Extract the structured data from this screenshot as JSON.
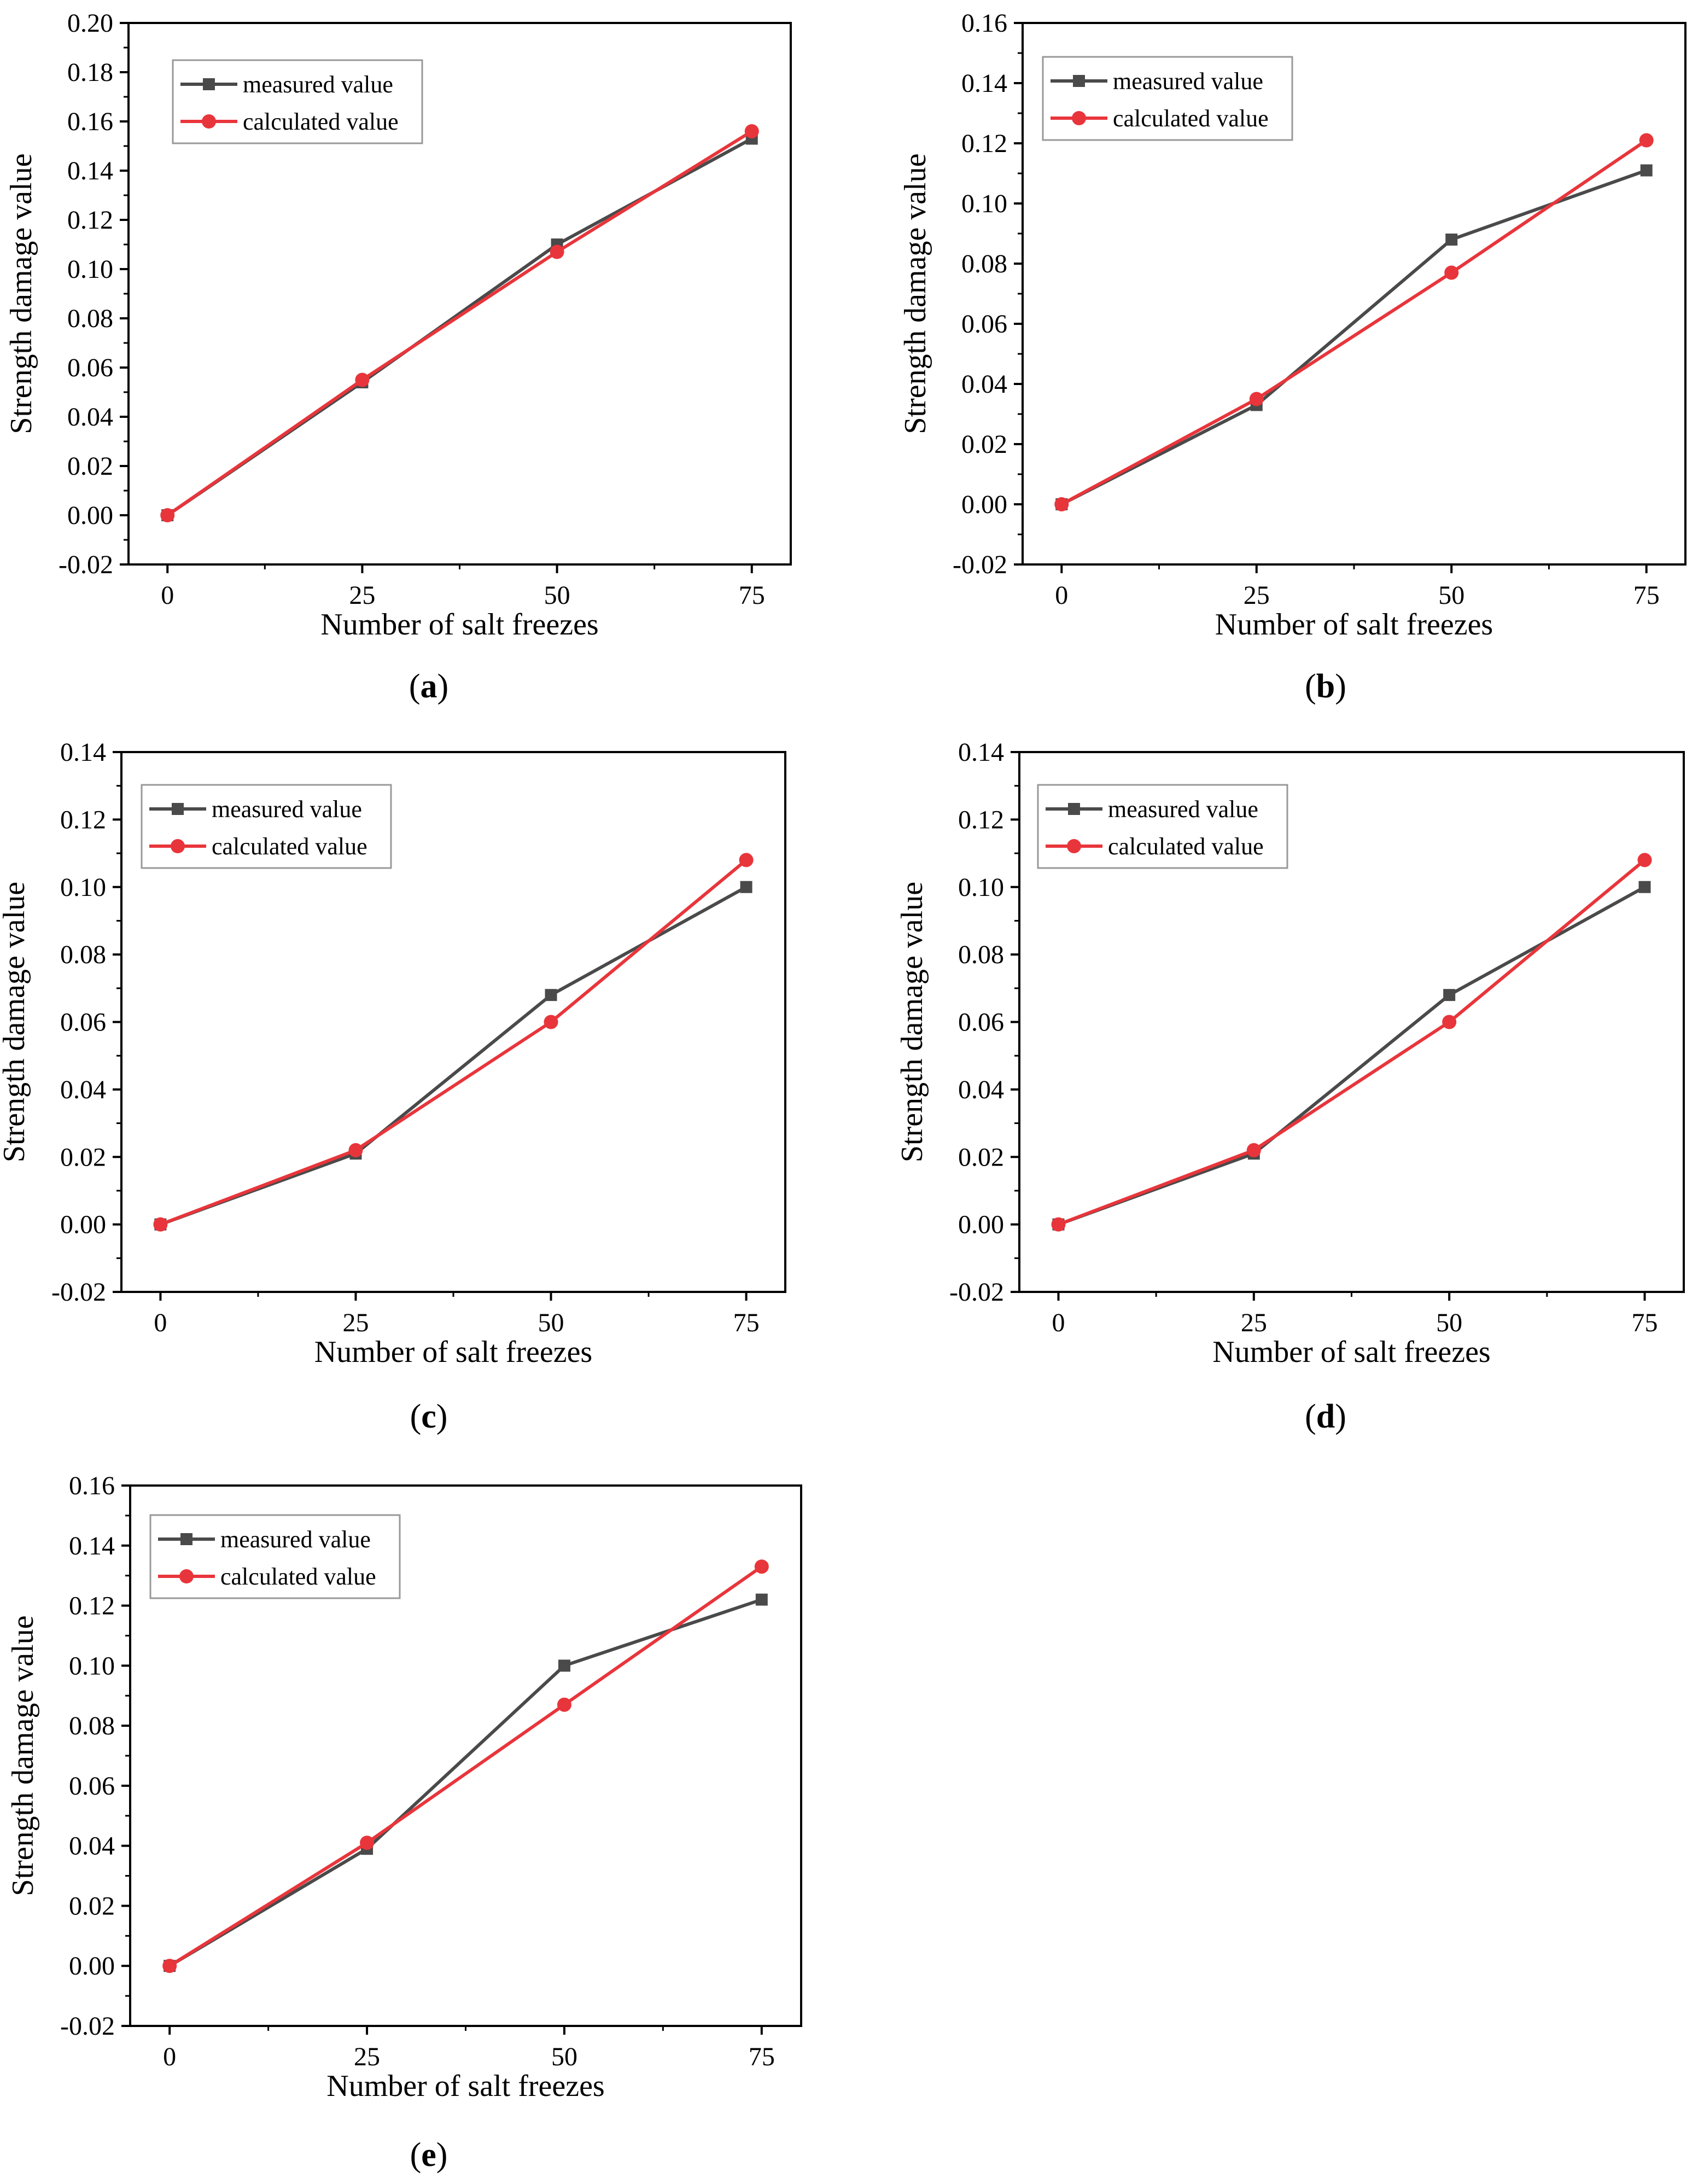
{
  "figure": {
    "colors": {
      "measured": "#4a4a4a",
      "calculated": "#e8353b",
      "axis": "#000000",
      "legend_border": "#999999"
    }
  },
  "chart_data": [
    {
      "id": "a",
      "panel_label": "a",
      "type": "line",
      "xlabel": "Number of salt freezes",
      "ylabel": "Strength damage value",
      "x": [
        0,
        25,
        50,
        75
      ],
      "x_ticks": [
        "0",
        "25",
        "50",
        "75"
      ],
      "xlim": [
        -5,
        80
      ],
      "ylim": [
        -0.02,
        0.2
      ],
      "y_ticks": [
        "-0.02",
        "0.00",
        "0.02",
        "0.04",
        "0.06",
        "0.08",
        "0.10",
        "0.12",
        "0.14",
        "0.16",
        "0.18",
        "0.20"
      ],
      "legend_position": "top-left",
      "series": [
        {
          "name": "measured value",
          "marker": "square",
          "values": [
            0,
            0.054,
            0.11,
            0.153
          ]
        },
        {
          "name": "calculated value",
          "marker": "circle",
          "values": [
            0,
            0.055,
            0.107,
            0.156
          ]
        }
      ]
    },
    {
      "id": "b",
      "panel_label": "b",
      "type": "line",
      "xlabel": "Number of salt freezes",
      "ylabel": "Strength damage value",
      "x": [
        0,
        25,
        50,
        75
      ],
      "x_ticks": [
        "0",
        "25",
        "50",
        "75"
      ],
      "xlim": [
        -5,
        80
      ],
      "ylim": [
        -0.02,
        0.16
      ],
      "y_ticks": [
        "-0.02",
        "0.00",
        "0.02",
        "0.04",
        "0.06",
        "0.08",
        "0.10",
        "0.12",
        "0.14",
        "0.16"
      ],
      "legend_position": "top-left",
      "series": [
        {
          "name": "measured value",
          "marker": "square",
          "values": [
            0,
            0.033,
            0.088,
            0.111
          ]
        },
        {
          "name": "calculated value",
          "marker": "circle",
          "values": [
            0,
            0.035,
            0.077,
            0.121
          ]
        }
      ]
    },
    {
      "id": "c",
      "panel_label": "c",
      "type": "line",
      "xlabel": "Number of salt freezes",
      "ylabel": "Strength damage value",
      "x": [
        0,
        25,
        50,
        75
      ],
      "x_ticks": [
        "0",
        "25",
        "50",
        "75"
      ],
      "xlim": [
        -5,
        80
      ],
      "ylim": [
        -0.02,
        0.14
      ],
      "y_ticks": [
        "-0.02",
        "0.00",
        "0.02",
        "0.04",
        "0.06",
        "0.08",
        "0.10",
        "0.12",
        "0.14"
      ],
      "legend_position": "top-left",
      "series": [
        {
          "name": "measured value",
          "marker": "square",
          "values": [
            0,
            0.021,
            0.068,
            0.1
          ]
        },
        {
          "name": "calculated value",
          "marker": "circle",
          "values": [
            0,
            0.022,
            0.06,
            0.108
          ]
        }
      ]
    },
    {
      "id": "d",
      "panel_label": "d",
      "type": "line",
      "xlabel": "Number of salt freezes",
      "ylabel": "Strength damage value",
      "x": [
        0,
        25,
        50,
        75
      ],
      "x_ticks": [
        "0",
        "25",
        "50",
        "75"
      ],
      "xlim": [
        -5,
        80
      ],
      "ylim": [
        -0.02,
        0.14
      ],
      "y_ticks": [
        "-0.02",
        "0.00",
        "0.02",
        "0.04",
        "0.06",
        "0.08",
        "0.10",
        "0.12",
        "0.14"
      ],
      "legend_position": "top-left",
      "series": [
        {
          "name": "measured value",
          "marker": "square",
          "values": [
            0,
            0.021,
            0.068,
            0.1
          ]
        },
        {
          "name": "calculated value",
          "marker": "circle",
          "values": [
            0,
            0.022,
            0.06,
            0.108
          ]
        }
      ]
    },
    {
      "id": "e",
      "panel_label": "e",
      "type": "line",
      "xlabel": "Number of salt freezes",
      "ylabel": "Strength damage value",
      "x": [
        0,
        25,
        50,
        75
      ],
      "x_ticks": [
        "0",
        "25",
        "50",
        "75"
      ],
      "xlim": [
        -5,
        80
      ],
      "ylim": [
        -0.02,
        0.16
      ],
      "y_ticks": [
        "-0.02",
        "0.00",
        "0.02",
        "0.04",
        "0.06",
        "0.08",
        "0.10",
        "0.12",
        "0.14",
        "0.16"
      ],
      "legend_position": "top-left",
      "series": [
        {
          "name": "measured value",
          "marker": "square",
          "values": [
            0,
            0.039,
            0.1,
            0.122
          ]
        },
        {
          "name": "calculated value",
          "marker": "circle",
          "values": [
            0,
            0.041,
            0.087,
            0.133
          ]
        }
      ]
    }
  ]
}
